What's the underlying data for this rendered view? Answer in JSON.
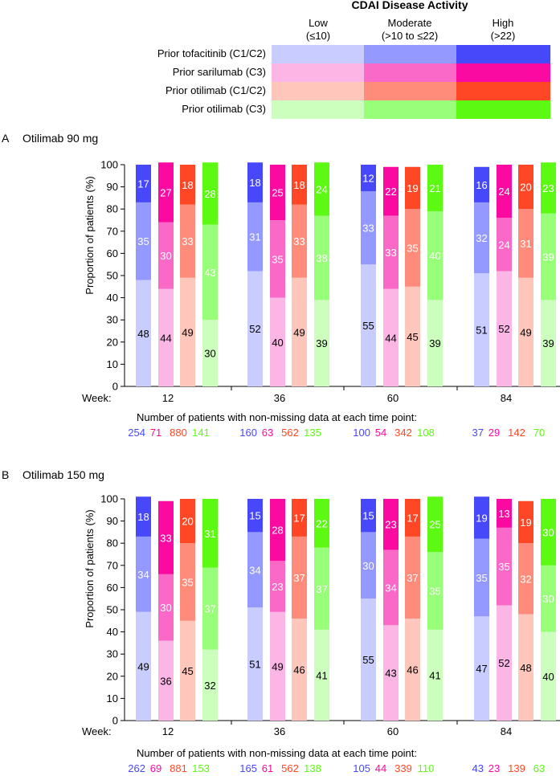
{
  "legend": {
    "title": "CDAI Disease Activity",
    "levels": [
      {
        "name": "Low",
        "range": "(≤10)"
      },
      {
        "name": "Moderate",
        "range": "(>10 to ≤22)"
      },
      {
        "name": "High",
        "range": "(>22)"
      }
    ],
    "rows": [
      {
        "label": "Prior tofacitinib (C1/C2)",
        "colors": [
          "#c8ccff",
          "#9499ff",
          "#4848fb"
        ]
      },
      {
        "label": "Prior sarilumab (C3)",
        "colors": [
          "#fbb6e6",
          "#fb69c8",
          "#fb0aa2"
        ]
      },
      {
        "label": "Prior otilimab (C1/C2)",
        "colors": [
          "#ffc6bc",
          "#ff8c7a",
          "#ff4725"
        ]
      },
      {
        "label": "Prior otilimab (C3)",
        "colors": [
          "#ccffbe",
          "#98ff78",
          "#5cf913"
        ]
      }
    ]
  },
  "chart_data": [
    {
      "type": "bar",
      "stacked": true,
      "panel_letter": "A",
      "title": "Otilimab 90 mg",
      "ylabel": "Proportion of patients (%)",
      "ylim": [
        0,
        100
      ],
      "yticks": [
        0,
        10,
        20,
        30,
        40,
        50,
        60,
        70,
        80,
        90,
        100
      ],
      "week_label": "Week:",
      "weeks": [
        "12",
        "36",
        "60",
        "84"
      ],
      "group_names": [
        "Prior tofacitinib (C1/C2)",
        "Prior sarilumab (C3)",
        "Prior otilimab (C1/C2)",
        "Prior otilimab (C3)"
      ],
      "series": [
        {
          "name": "Low",
          "values": [
            [
              48,
              44,
              49,
              30
            ],
            [
              52,
              40,
              49,
              39
            ],
            [
              55,
              44,
              45,
              39
            ],
            [
              51,
              52,
              49,
              39
            ]
          ]
        },
        {
          "name": "Moderate",
          "values": [
            [
              35,
              30,
              33,
              43
            ],
            [
              31,
              35,
              33,
              38
            ],
            [
              33,
              33,
              35,
              40
            ],
            [
              32,
              24,
              31,
              39
            ]
          ]
        },
        {
          "name": "High",
          "values": [
            [
              17,
              27,
              18,
              28
            ],
            [
              18,
              25,
              18,
              24
            ],
            [
              12,
              22,
              19,
              21
            ],
            [
              16,
              24,
              20,
              23
            ]
          ]
        }
      ],
      "n_title": "Number of patients with non-missing data at each time point:",
      "n_values": [
        [
          "254",
          "71",
          "880",
          "141"
        ],
        [
          "160",
          "63",
          "562",
          "135"
        ],
        [
          "100",
          "54",
          "342",
          "108"
        ],
        [
          "37",
          "29",
          "142",
          "70"
        ]
      ]
    },
    {
      "type": "bar",
      "stacked": true,
      "panel_letter": "B",
      "title": "Otilimab 150 mg",
      "ylabel": "Proportion of patients (%)",
      "ylim": [
        0,
        100
      ],
      "yticks": [
        0,
        10,
        20,
        30,
        40,
        50,
        60,
        70,
        80,
        90,
        100
      ],
      "week_label": "Week:",
      "weeks": [
        "12",
        "36",
        "60",
        "84"
      ],
      "group_names": [
        "Prior tofacitinib (C1/C2)",
        "Prior sarilumab (C3)",
        "Prior otilimab (C1/C2)",
        "Prior otilimab (C3)"
      ],
      "series": [
        {
          "name": "Low",
          "values": [
            [
              49,
              36,
              45,
              32
            ],
            [
              51,
              49,
              46,
              41
            ],
            [
              55,
              43,
              46,
              41
            ],
            [
              47,
              52,
              48,
              40
            ]
          ]
        },
        {
          "name": "Moderate",
          "values": [
            [
              34,
              30,
              35,
              37
            ],
            [
              34,
              23,
              37,
              37
            ],
            [
              30,
              34,
              37,
              35
            ],
            [
              35,
              35,
              32,
              30
            ]
          ]
        },
        {
          "name": "High",
          "values": [
            [
              18,
              33,
              20,
              31
            ],
            [
              15,
              28,
              17,
              22
            ],
            [
              15,
              23,
              17,
              25
            ],
            [
              19,
              13,
              19,
              30
            ]
          ]
        }
      ],
      "n_title": "Number of patients with non-missing data at each time point:",
      "n_values": [
        [
          "262",
          "69",
          "881",
          "153"
        ],
        [
          "165",
          "61",
          "562",
          "138"
        ],
        [
          "105",
          "44",
          "339",
          "110"
        ],
        [
          "43",
          "23",
          "139",
          "63"
        ]
      ]
    }
  ]
}
